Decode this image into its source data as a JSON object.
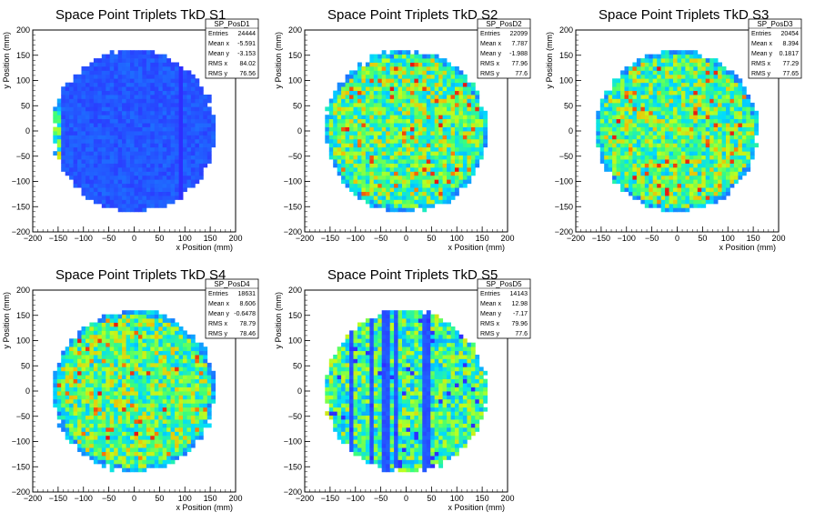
{
  "chart_data": [
    {
      "type": "heatmap",
      "title": "Space Point Triplets TkD S1",
      "xlabel": "x Position (mm)",
      "ylabel": "y Position (mm)",
      "xlim": [
        -200,
        200
      ],
      "ylim": [
        -200,
        200
      ],
      "xticks": [
        -200,
        -150,
        -100,
        -50,
        0,
        50,
        100,
        150,
        200
      ],
      "yticks": [
        -200,
        -150,
        -100,
        -50,
        0,
        50,
        100,
        150,
        200
      ],
      "stats_name": "SP_PosD1",
      "stats": [
        [
          "Entries",
          "24444"
        ],
        [
          "Mean x",
          "-5.591"
        ],
        [
          "Mean y",
          "-3.153"
        ],
        [
          "RMS x",
          "84.02"
        ],
        [
          "RMS y",
          "76.56"
        ]
      ],
      "colors": [
        "#1f2bff",
        "#1e5cff"
      ],
      "profile": "edge-left"
    },
    {
      "type": "heatmap",
      "title": "Space Point Triplets TkD S2",
      "xlabel": "x Position (mm)",
      "ylabel": "y Position (mm)",
      "xlim": [
        -200,
        200
      ],
      "ylim": [
        -200,
        200
      ],
      "xticks": [
        -200,
        -150,
        -100,
        -50,
        0,
        50,
        100,
        150,
        200
      ],
      "yticks": [
        -200,
        -150,
        -100,
        -50,
        0,
        50,
        100,
        150,
        200
      ],
      "stats_name": "SP_PosD2",
      "stats": [
        [
          "Entries",
          "22099"
        ],
        [
          "Mean x",
          "7.787"
        ],
        [
          "Mean y",
          "-1.988"
        ],
        [
          "RMS x",
          "77.96"
        ],
        [
          "RMS y",
          "77.6"
        ]
      ],
      "colors": [
        "#00c8ff",
        "#6fff50"
      ],
      "profile": "uniform"
    },
    {
      "type": "heatmap",
      "title": "Space Point Triplets TkD S3",
      "xlabel": "x Position (mm)",
      "ylabel": "y Position (mm)",
      "xlim": [
        -200,
        200
      ],
      "ylim": [
        -200,
        200
      ],
      "xticks": [
        -200,
        -150,
        -100,
        -50,
        0,
        50,
        100,
        150,
        200
      ],
      "yticks": [
        -200,
        -150,
        -100,
        -50,
        0,
        50,
        100,
        150,
        200
      ],
      "stats_name": "SP_PosD3",
      "stats": [
        [
          "Entries",
          "20454"
        ],
        [
          "Mean x",
          "8.394"
        ],
        [
          "Mean y",
          "0.1817"
        ],
        [
          "RMS x",
          "77.29"
        ],
        [
          "RMS y",
          "77.65"
        ]
      ],
      "colors": [
        "#00c8ff",
        "#b8ff30"
      ],
      "profile": "uniform"
    },
    {
      "type": "heatmap",
      "title": "Space Point Triplets TkD S4",
      "xlabel": "x Position (mm)",
      "ylabel": "y Position (mm)",
      "xlim": [
        -200,
        200
      ],
      "ylim": [
        -200,
        200
      ],
      "xticks": [
        -200,
        -150,
        -100,
        -50,
        0,
        50,
        100,
        150,
        200
      ],
      "yticks": [
        -200,
        -150,
        -100,
        -50,
        0,
        50,
        100,
        150,
        200
      ],
      "stats_name": "SP_PosD4",
      "stats": [
        [
          "Entries",
          "18631"
        ],
        [
          "Mean x",
          "8.606"
        ],
        [
          "Mean y",
          "-0.6478"
        ],
        [
          "RMS x",
          "78.79"
        ],
        [
          "RMS y",
          "78.46"
        ]
      ],
      "colors": [
        "#00c8ff",
        "#8cff40"
      ],
      "profile": "uniform"
    },
    {
      "type": "heatmap",
      "title": "Space Point Triplets TkD S5",
      "xlabel": "x Position (mm)",
      "ylabel": "y Position (mm)",
      "xlim": [
        -200,
        200
      ],
      "ylim": [
        -200,
        200
      ],
      "xticks": [
        -200,
        -150,
        -100,
        -50,
        0,
        50,
        100,
        150,
        200
      ],
      "yticks": [
        -200,
        -150,
        -100,
        -50,
        0,
        50,
        100,
        150,
        200
      ],
      "stats_name": "SP_PosD5",
      "stats": [
        [
          "Entries",
          "14143"
        ],
        [
          "Mean x",
          "12.98"
        ],
        [
          "Mean y",
          "-7.17"
        ],
        [
          "RMS x",
          "79.96"
        ],
        [
          "RMS y",
          "77.6"
        ]
      ],
      "colors": [
        "#00c8ff",
        "#8cff40"
      ],
      "profile": "stripes"
    }
  ]
}
